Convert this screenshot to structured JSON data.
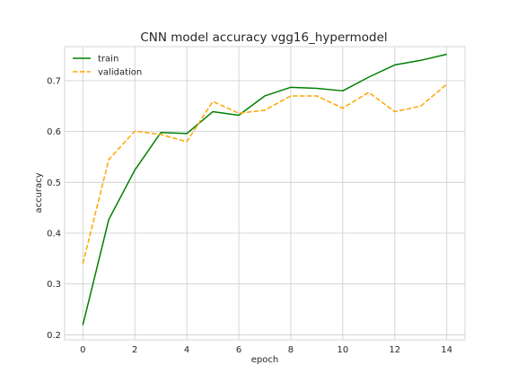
{
  "chart_data": {
    "type": "line",
    "title": "CNN model accuracy vgg16_hypermodel",
    "xlabel": "epoch",
    "ylabel": "accuracy",
    "x": [
      0,
      1,
      2,
      3,
      4,
      5,
      6,
      7,
      8,
      9,
      10,
      11,
      12,
      13,
      14
    ],
    "xlim": [
      -0.7,
      14.7
    ],
    "ylim": [
      0.19,
      0.767
    ],
    "xticks": [
      0,
      2,
      4,
      6,
      8,
      10,
      12,
      14
    ],
    "yticks": [
      0.2,
      0.3,
      0.4,
      0.5,
      0.6,
      0.7
    ],
    "xtick_labels": [
      "0",
      "2",
      "4",
      "6",
      "8",
      "10",
      "12",
      "14"
    ],
    "ytick_labels": [
      "0.2",
      "0.3",
      "0.4",
      "0.5",
      "0.6",
      "0.7"
    ],
    "grid": true,
    "legend_position": "top-left",
    "series": [
      {
        "name": "train",
        "color": "#008000",
        "dash": "solid",
        "values": [
          0.219,
          0.427,
          0.524,
          0.598,
          0.596,
          0.639,
          0.632,
          0.67,
          0.687,
          0.685,
          0.68,
          0.707,
          0.731,
          0.74,
          0.752
        ]
      },
      {
        "name": "validation",
        "color": "#FFA500",
        "dash": "dashed",
        "values": [
          0.34,
          0.545,
          0.601,
          0.594,
          0.58,
          0.659,
          0.636,
          0.642,
          0.67,
          0.67,
          0.646,
          0.677,
          0.639,
          0.65,
          0.693
        ]
      }
    ]
  }
}
